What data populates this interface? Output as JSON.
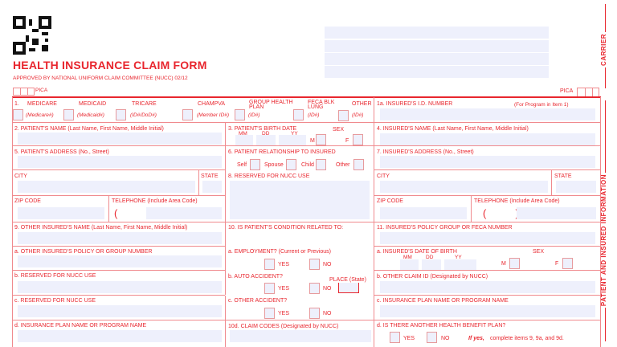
{
  "header": {
    "title": "HEALTH INSURANCE CLAIM FORM",
    "approved": "APPROVED BY NATIONAL UNIFORM CLAIM COMMITTEE (NUCC) 02/12",
    "pica_left": "PICA",
    "pica_right": "PICA"
  },
  "side": {
    "carrier": "CARRIER",
    "patient": "PATIENT AND INSURED INFORMATION"
  },
  "item1": {
    "num": "1.",
    "types": [
      {
        "label": "MEDICARE",
        "sub": "(Medicare#)"
      },
      {
        "label": "MEDICAID",
        "sub": "(Medicaid#)"
      },
      {
        "label": "TRICARE",
        "sub": "(ID#/DoD#)"
      },
      {
        "label": "CHAMPVA",
        "sub": "(Member ID#)"
      },
      {
        "label": "GROUP HEALTH PLAN",
        "sub": "(ID#)"
      },
      {
        "label": "FECA BLK LUNG",
        "sub": "(ID#)"
      },
      {
        "label": "OTHER",
        "sub": "(ID#)"
      }
    ]
  },
  "item1a": {
    "label": "1a. INSURED'S I.D. NUMBER",
    "note": "(For Program in Item 1)"
  },
  "item2": "2. PATIENT'S NAME (Last Name, First Name, Middle Initial)",
  "item3": {
    "label": "3. PATIENT'S BIRTH DATE",
    "mm": "MM",
    "dd": "DD",
    "yy": "YY",
    "sex": "SEX",
    "m": "M",
    "f": "F"
  },
  "item4": "4. INSURED'S NAME (Last Name, First Name, Middle Initial)",
  "item5": "5. PATIENT'S ADDRESS (No., Street)",
  "item6": {
    "label": "6. PATIENT RELATIONSHIP TO INSURED",
    "self": "Self",
    "spouse": "Spouse",
    "child": "Child",
    "other": "Other"
  },
  "item7": "7. INSURED'S ADDRESS (No., Street)",
  "city": "CITY",
  "state": "STATE",
  "zip": "ZIP CODE",
  "telephone": "TELEPHONE (Include Area Code)",
  "paren": "(          )",
  "item8": "8. RESERVED FOR NUCC USE",
  "item9": {
    "label": "9. OTHER INSURED'S NAME (Last Name, First Name, Middle Initial)",
    "a": "a. OTHER INSURED'S POLICY OR GROUP NUMBER",
    "b": "b. RESERVED FOR NUCC USE",
    "c": "c. RESERVED FOR NUCC USE",
    "d": "d. INSURANCE PLAN NAME OR PROGRAM NAME"
  },
  "item10": {
    "label": "10. IS PATIENT'S CONDITION RELATED TO:",
    "a": "a. EMPLOYMENT? (Current or Previous)",
    "b": "b. AUTO ACCIDENT?",
    "place": "PLACE (State)",
    "c": "c. OTHER ACCIDENT?",
    "d": "10d. CLAIM CODES (Designated by NUCC)",
    "yes": "YES",
    "no": "NO"
  },
  "item11": {
    "label": "11. INSURED'S POLICY GROUP OR FECA NUMBER",
    "a": "a. INSURED'S DATE OF BIRTH",
    "mm": "MM",
    "dd": "DD",
    "yy": "YY",
    "sex": "SEX",
    "m": "M",
    "f": "F",
    "b": "b. OTHER CLAIM ID (Designated by NUCC)",
    "c": "c. INSURANCE PLAN NAME OR PROGRAM NAME",
    "d": "d. IS THERE ANOTHER HEALTH BENEFIT PLAN?",
    "yes": "YES",
    "no": "NO",
    "ifyes": "If yes,",
    "ifyes_rest": "complete items 9, 9a, and 9d."
  },
  "colors": {
    "red": "#e8262e",
    "field": "#eef0fc"
  }
}
